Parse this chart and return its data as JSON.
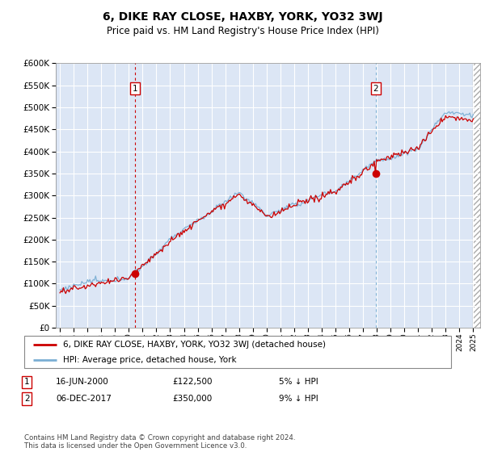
{
  "title": "6, DIKE RAY CLOSE, HAXBY, YORK, YO32 3WJ",
  "subtitle": "Price paid vs. HM Land Registry's House Price Index (HPI)",
  "legend_line1": "6, DIKE RAY CLOSE, HAXBY, YORK, YO32 3WJ (detached house)",
  "legend_line2": "HPI: Average price, detached house, York",
  "annotation1": {
    "num": "1",
    "date": "16-JUN-2000",
    "price": "£122,500",
    "note": "5% ↓ HPI"
  },
  "annotation2": {
    "num": "2",
    "date": "06-DEC-2017",
    "price": "£350,000",
    "note": "9% ↓ HPI"
  },
  "footer": "Contains HM Land Registry data © Crown copyright and database right 2024.\nThis data is licensed under the Open Government Licence v3.0.",
  "hpi_color": "#7bafd4",
  "price_color": "#cc0000",
  "vline1_color": "#cc0000",
  "vline2_color": "#7bafd4",
  "marker_color": "#cc0000",
  "ylim": [
    0,
    600000
  ],
  "yticks": [
    0,
    50000,
    100000,
    150000,
    200000,
    250000,
    300000,
    350000,
    400000,
    450000,
    500000,
    550000,
    600000
  ],
  "x_start_year": 1995,
  "x_end_year": 2025,
  "sale1_year": 2000.46,
  "sale1_price": 122500,
  "sale2_year": 2017.92,
  "sale2_price": 350000,
  "background_color": "#dce6f5"
}
